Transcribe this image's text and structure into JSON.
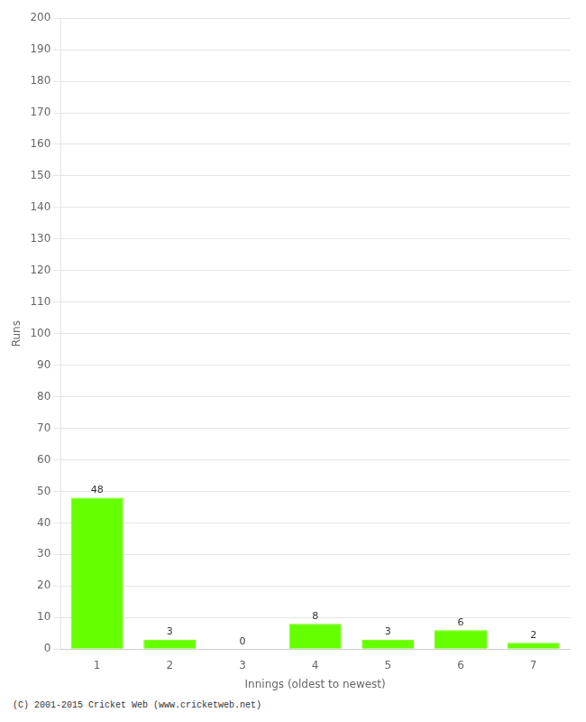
{
  "chart_data": {
    "type": "bar",
    "xlabel": "Innings (oldest to newest)",
    "ylabel": "Runs",
    "categories": [
      "1",
      "2",
      "3",
      "4",
      "5",
      "6",
      "7"
    ],
    "values": [
      48,
      3,
      0,
      8,
      3,
      6,
      2
    ],
    "color": "#66ff00",
    "ylim": [
      0,
      200
    ],
    "yticks": [
      0,
      10,
      20,
      30,
      40,
      50,
      60,
      70,
      80,
      90,
      100,
      110,
      120,
      130,
      140,
      150,
      160,
      170,
      180,
      190,
      200
    ],
    "grid": true,
    "data_labels": true,
    "annotations": [
      "(C) 2001-2015 Cricket Web (www.cricketweb.net)"
    ]
  }
}
